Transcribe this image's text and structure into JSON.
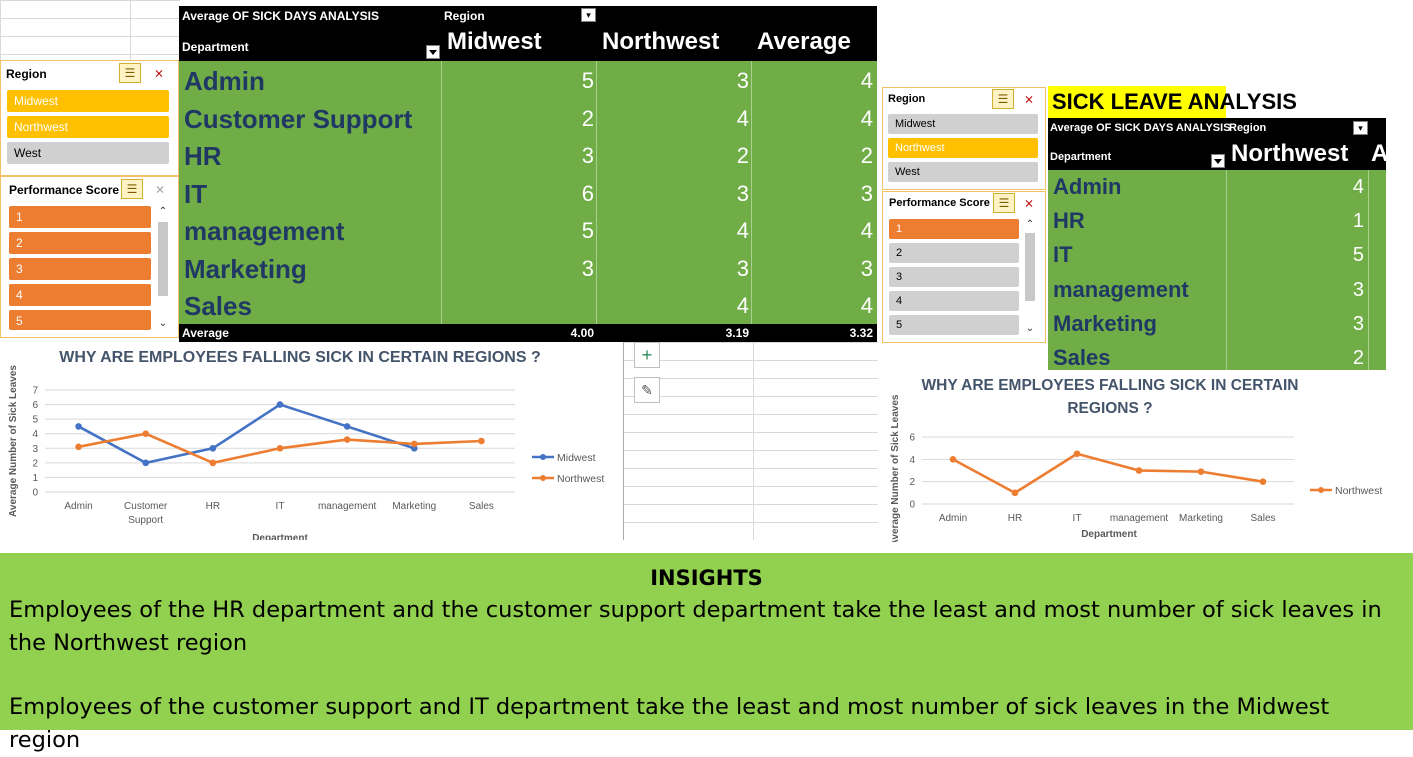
{
  "pivot_main": {
    "title": "Average OF SICK DAYS ANALYSIS",
    "region_label": "Region",
    "department_label": "Department",
    "columns": [
      "Midwest",
      "Northwest",
      "Average"
    ],
    "rows": [
      {
        "dept": "Admin",
        "midwest": "5",
        "northwest": "3",
        "average": "4"
      },
      {
        "dept": "Customer Support",
        "midwest": "2",
        "northwest": "4",
        "average": "4"
      },
      {
        "dept": "HR",
        "midwest": "3",
        "northwest": "2",
        "average": "2"
      },
      {
        "dept": "IT",
        "midwest": "6",
        "northwest": "3",
        "average": "3"
      },
      {
        "dept": "management",
        "midwest": "5",
        "northwest": "4",
        "average": "4"
      },
      {
        "dept": "Marketing",
        "midwest": "3",
        "northwest": "3",
        "average": "3"
      },
      {
        "dept": "Sales",
        "midwest": "",
        "northwest": "4",
        "average": "4"
      }
    ],
    "total_label": "Average",
    "totals": [
      "4.00",
      "3.19",
      "3.32"
    ]
  },
  "slicer_region_left": {
    "title": "Region",
    "items": [
      "Midwest",
      "Northwest",
      "West"
    ]
  },
  "slicer_perf_left": {
    "title": "Performance Score",
    "items": [
      "1",
      "2",
      "3",
      "4",
      "5"
    ]
  },
  "slicer_region_right": {
    "title": "Region",
    "items": [
      "Midwest",
      "Northwest",
      "West"
    ]
  },
  "slicer_perf_right": {
    "title": "Performance Score",
    "items": [
      "1",
      "2",
      "3",
      "4",
      "5"
    ]
  },
  "pivot_right": {
    "banner": "SICK LEAVE ANALYSIS",
    "title": "Average OF SICK DAYS ANALYSIS",
    "region_label": "Region",
    "department_label": "Department",
    "column": "Northwest",
    "column_cut": "A",
    "rows": [
      {
        "dept": "Admin",
        "value": "4"
      },
      {
        "dept": "HR",
        "value": "1"
      },
      {
        "dept": "IT",
        "value": "5"
      },
      {
        "dept": "management",
        "value": "3"
      },
      {
        "dept": "Marketing",
        "value": "3"
      },
      {
        "dept": "Sales",
        "value": "2"
      }
    ]
  },
  "colors": {
    "midwest": "#4472c4",
    "northwest": "#ed7d31",
    "pivot_green": "#70ad47",
    "pivot_text": "#203864",
    "insights_bg": "#92d050",
    "chart_title": "#44546a"
  },
  "icons": {
    "add": "plus-icon",
    "brush": "brush-icon",
    "filter": "filter-icon",
    "multiselect": "multi-select-icon",
    "clear": "clear-filter-icon"
  },
  "chart_data": [
    {
      "type": "line",
      "title": "WHY ARE EMPLOYEES FALLING SICK IN CERTAIN REGIONS ?",
      "xlabel": "Department",
      "ylabel": "Average Number of Sick Leaves",
      "categories": [
        "Admin",
        "Customer Support",
        "HR",
        "IT",
        "management",
        "Marketing",
        "Sales"
      ],
      "category_lines": [
        [
          "Admin"
        ],
        [
          "Customer",
          "Support"
        ],
        [
          "HR"
        ],
        [
          "IT"
        ],
        [
          "management"
        ],
        [
          "Marketing"
        ],
        [
          "Sales"
        ]
      ],
      "ylim": [
        0,
        7
      ],
      "yticks": [
        "0",
        "1",
        "2",
        "3",
        "4",
        "5",
        "6",
        "7"
      ],
      "grid": true,
      "legend": "right",
      "series": [
        {
          "name": "Midwest",
          "values": [
            4.5,
            2,
            3,
            6,
            4.5,
            3,
            null
          ]
        },
        {
          "name": "Northwest",
          "values": [
            3.1,
            4,
            2,
            3,
            3.6,
            3.3,
            3.5
          ]
        }
      ]
    },
    {
      "type": "line",
      "title_lines": [
        "WHY ARE EMPLOYEES FALLING SICK IN CERTAIN",
        "REGIONS ?"
      ],
      "xlabel": "Department",
      "ylabel": "Average Number of Sick Leaves",
      "categories": [
        "Admin",
        "HR",
        "IT",
        "management",
        "Marketing",
        "Sales"
      ],
      "ylim": [
        0,
        6
      ],
      "yticks": [
        "0",
        "2",
        "4",
        "6"
      ],
      "grid": true,
      "legend": "right",
      "series": [
        {
          "name": "Northwest",
          "values": [
            4,
            1,
            4.5,
            3,
            2.9,
            2
          ]
        }
      ]
    }
  ],
  "insights": {
    "heading": "INSIGHTS",
    "p1": "Employees of the HR department and the customer support department take the least and most number of sick leaves in the Northwest region",
    "p2": "Employees of the customer support and IT department take the least and most number of sick leaves in the Midwest region"
  }
}
